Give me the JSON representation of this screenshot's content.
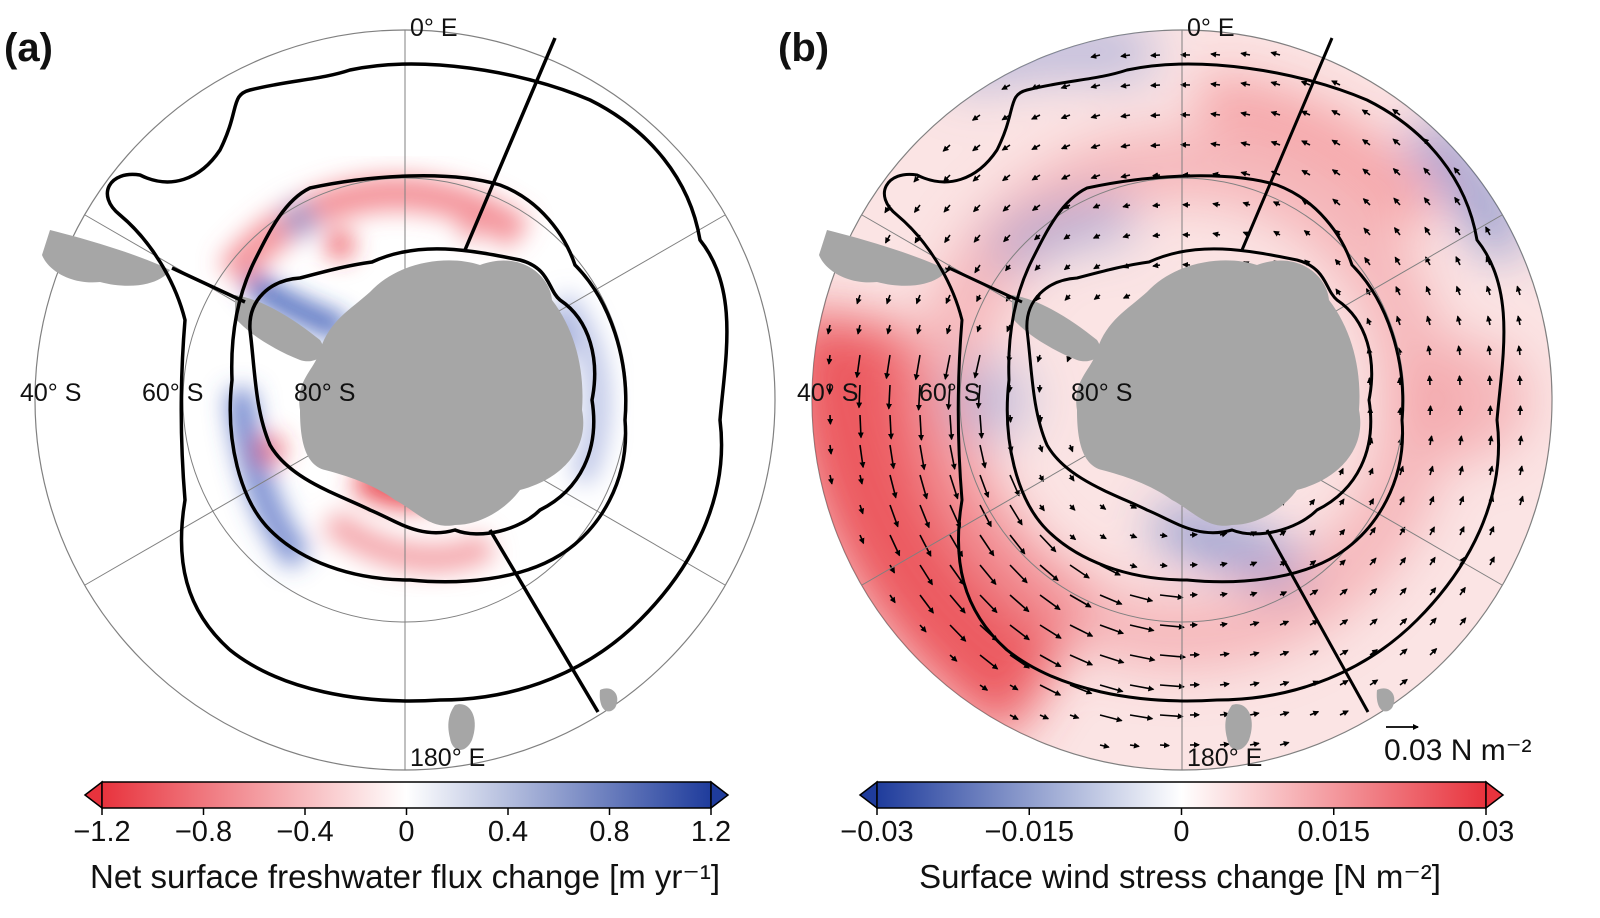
{
  "panels": [
    {
      "id": "a",
      "label": "(a)",
      "lon_labels": {
        "top": "0° E",
        "bottom": "180° E"
      },
      "lat_labels": [
        "40° S",
        "60° S",
        "80° S"
      ],
      "colorbar": {
        "title": "Net surface freshwater flux change [m yr⁻¹]",
        "ticks": [
          "−1.2",
          "−0.8",
          "−0.4",
          "0",
          "0.4",
          "0.8",
          "1.2"
        ],
        "low_color": "#e8333d",
        "high_color": "#1f3c9c"
      }
    },
    {
      "id": "b",
      "label": "(b)",
      "lon_labels": {
        "top": "0° E",
        "bottom": "180° E"
      },
      "lat_labels": [
        "40° S",
        "60° S",
        "80° S"
      ],
      "colorbar": {
        "title": "Surface wind stress change [N m⁻²]",
        "ticks": [
          "−0.03",
          "−0.015",
          "0",
          "0.015",
          "0.03"
        ],
        "low_color": "#1f3c9c",
        "high_color": "#e8333d"
      },
      "reference_vector": "0.03 N m⁻²"
    }
  ],
  "colors": {
    "land": "#a6a6a6",
    "grid": "#808080",
    "contour": "#000000"
  }
}
